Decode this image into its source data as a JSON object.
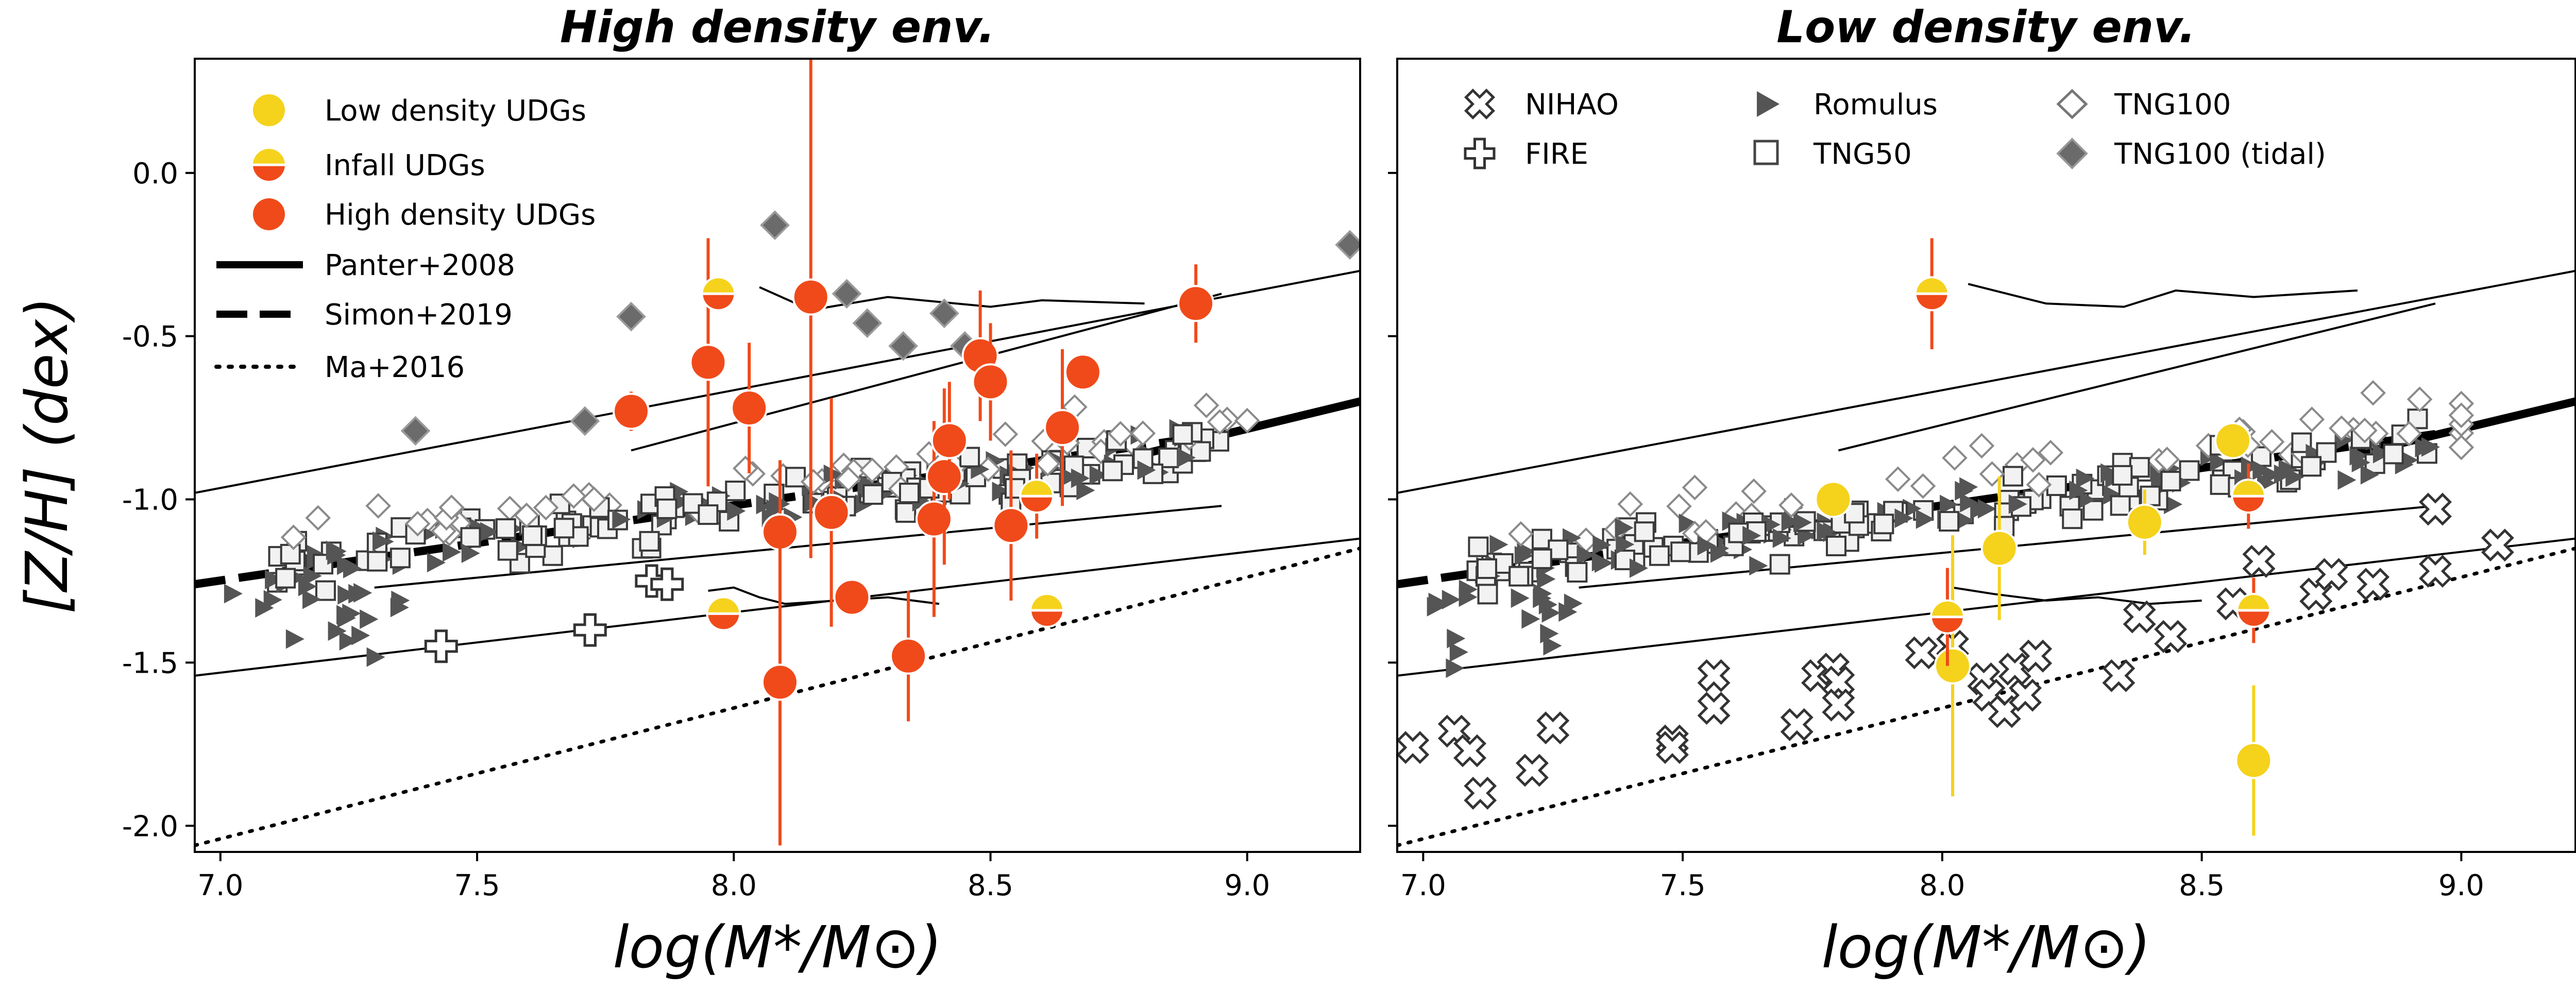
{
  "chart_data": [
    {
      "panel": "left",
      "type": "scatter",
      "title": "High density env.",
      "xlabel": "log(M*/M⊙)",
      "ylabel": "[Z/H] (dex)",
      "xlim": [
        6.95,
        9.22
      ],
      "ylim": [
        -2.08,
        0.35
      ],
      "xticks": [
        "7.0",
        "7.5",
        "8.0",
        "8.5",
        "9.0"
      ],
      "yticks": [
        "0.0",
        "-0.5",
        "-1.0",
        "-1.5",
        "-2.0"
      ],
      "legend_position": "upper-left",
      "legend": [
        {
          "label": "Low density UDGs",
          "marker": "circle",
          "color": "#f5d21c"
        },
        {
          "label": "Infall UDGs",
          "marker": "half-circle",
          "color": "#f5d21c",
          "color2": "#f04a1a"
        },
        {
          "label": "High density UDGs",
          "marker": "circle",
          "color": "#f04a1a"
        },
        {
          "label": "Panter+2008",
          "marker": "line-solid"
        },
        {
          "label": "Simon+2019",
          "marker": "line-dashed"
        },
        {
          "label": "Ma+2016",
          "marker": "line-dotted"
        }
      ],
      "relations": {
        "panter_band": [
          [
            6.95,
            -0.98
          ],
          [
            9.22,
            -0.3
          ]
        ],
        "panter_lower": [
          [
            6.95,
            -1.54
          ],
          [
            9.22,
            -1.12
          ]
        ],
        "simon_dashed": [
          [
            6.95,
            -1.26
          ],
          [
            8.95,
            -0.8
          ]
        ],
        "simon_thick": [
          [
            8.8,
            -0.86
          ],
          [
            9.22,
            -0.7
          ]
        ],
        "ma_dotted": [
          [
            6.95,
            -2.06
          ],
          [
            9.22,
            -1.15
          ]
        ],
        "thin_upper": [
          [
            7.8,
            -0.85
          ],
          [
            8.95,
            -0.37
          ]
        ],
        "thin_lower": [
          [
            7.3,
            -1.27
          ],
          [
            8.95,
            -1.02
          ]
        ],
        "thin_wiggle": [
          [
            7.95,
            -1.28
          ],
          [
            8.0,
            -1.27
          ],
          [
            8.05,
            -1.3
          ],
          [
            8.1,
            -1.32
          ],
          [
            8.2,
            -1.31
          ],
          [
            8.3,
            -1.3
          ],
          [
            8.4,
            -1.32
          ]
        ],
        "thin_top": [
          [
            8.05,
            -0.35
          ],
          [
            8.15,
            -0.42
          ],
          [
            8.3,
            -0.38
          ],
          [
            8.5,
            -0.41
          ],
          [
            8.6,
            -0.39
          ],
          [
            8.8,
            -0.4
          ]
        ]
      },
      "series": [
        {
          "name": "High density UDGs",
          "marker": "circle",
          "color": "#f04a1a",
          "points": [
            {
              "x": 7.8,
              "y": -0.73,
              "err": 0.06
            },
            {
              "x": 7.95,
              "y": -0.58,
              "err": 0.38
            },
            {
              "x": 8.03,
              "y": -0.72,
              "err": 0.2
            },
            {
              "x": 8.09,
              "y": -1.1,
              "err": 0.22
            },
            {
              "x": 8.15,
              "y": -0.38,
              "err": 0.8
            },
            {
              "x": 8.19,
              "y": -1.04,
              "err": 0.35
            },
            {
              "x": 8.23,
              "y": -1.3,
              "err": 0.0
            },
            {
              "x": 8.09,
              "y": -1.56,
              "err": 0.5
            },
            {
              "x": 8.34,
              "y": -1.48,
              "err": 0.2
            },
            {
              "x": 8.39,
              "y": -1.06,
              "err": 0.3
            },
            {
              "x": 8.41,
              "y": -0.93,
              "err": 0.27
            },
            {
              "x": 8.42,
              "y": -0.82,
              "err": 0.18
            },
            {
              "x": 8.48,
              "y": -0.56,
              "err": 0.2
            },
            {
              "x": 8.5,
              "y": -0.64,
              "err": 0.18
            },
            {
              "x": 8.54,
              "y": -1.08,
              "err": 0.23
            },
            {
              "x": 8.64,
              "y": -0.78,
              "err": 0.24
            },
            {
              "x": 8.68,
              "y": -0.61,
              "err": 0.0
            },
            {
              "x": 8.9,
              "y": -0.4,
              "err": 0.12
            }
          ]
        },
        {
          "name": "Infall UDGs",
          "marker": "half-circle",
          "color": "#f5d21c",
          "color2": "#f04a1a",
          "points": [
            {
              "x": 7.97,
              "y": -0.37,
              "err": 0.0
            },
            {
              "x": 7.98,
              "y": -1.35,
              "err": 0.0
            },
            {
              "x": 8.59,
              "y": -0.99,
              "err": 0.13
            },
            {
              "x": 8.61,
              "y": -1.34,
              "err": 0.0
            }
          ]
        },
        {
          "name": "TNG100 (tidal)",
          "marker": "diamond-filled",
          "color": "#6b6b6b",
          "points": [
            {
              "x": 7.38,
              "y": -0.79
            },
            {
              "x": 7.8,
              "y": -0.44
            },
            {
              "x": 8.08,
              "y": -0.16
            },
            {
              "x": 8.22,
              "y": -0.37
            },
            {
              "x": 8.26,
              "y": -0.46
            },
            {
              "x": 8.33,
              "y": -0.53
            },
            {
              "x": 8.41,
              "y": -0.43
            },
            {
              "x": 8.45,
              "y": -0.53
            },
            {
              "x": 9.2,
              "y": -0.22
            },
            {
              "x": 7.71,
              "y": -0.76
            }
          ]
        }
      ]
    },
    {
      "panel": "right",
      "type": "scatter",
      "title": "Low density env.",
      "xlabel": "log(M*/M⊙)",
      "ylabel": "",
      "xlim": [
        6.95,
        9.22
      ],
      "ylim": [
        -2.08,
        0.35
      ],
      "xticks": [
        "7.0",
        "7.5",
        "8.0",
        "8.5",
        "9.0"
      ],
      "legend_position": "upper-left",
      "legend": [
        {
          "label": "NIHAO",
          "marker": "x-cross"
        },
        {
          "label": "FIRE",
          "marker": "plus-cross"
        },
        {
          "label": "Romulus",
          "marker": "triangle-right"
        },
        {
          "label": "TNG50",
          "marker": "square"
        },
        {
          "label": "TNG100",
          "marker": "diamond-open"
        },
        {
          "label": "TNG100 (tidal)",
          "marker": "diamond-filled"
        }
      ],
      "relations": {
        "panter_band": [
          [
            6.95,
            -0.98
          ],
          [
            9.22,
            -0.3
          ]
        ],
        "panter_lower": [
          [
            6.95,
            -1.54
          ],
          [
            9.22,
            -1.12
          ]
        ],
        "simon_dashed": [
          [
            6.95,
            -1.26
          ],
          [
            8.95,
            -0.8
          ]
        ],
        "simon_thick": [
          [
            8.8,
            -0.86
          ],
          [
            9.22,
            -0.7
          ]
        ],
        "ma_dotted": [
          [
            6.95,
            -2.06
          ],
          [
            9.22,
            -1.15
          ]
        ],
        "thin_upper": [
          [
            7.8,
            -0.85
          ],
          [
            8.95,
            -0.4
          ]
        ],
        "thin_lower": [
          [
            7.3,
            -1.27
          ],
          [
            8.95,
            -1.02
          ]
        ],
        "thin_wiggle": [
          [
            8.02,
            -1.27
          ],
          [
            8.1,
            -1.29
          ],
          [
            8.2,
            -1.31
          ],
          [
            8.3,
            -1.3
          ],
          [
            8.4,
            -1.32
          ],
          [
            8.5,
            -1.31
          ]
        ],
        "thin_top": [
          [
            8.05,
            -0.34
          ],
          [
            8.2,
            -0.4
          ],
          [
            8.35,
            -0.41
          ],
          [
            8.45,
            -0.36
          ],
          [
            8.6,
            -0.38
          ],
          [
            8.8,
            -0.36
          ]
        ]
      },
      "series": [
        {
          "name": "Low density UDGs",
          "marker": "circle",
          "color": "#f5d21c",
          "points": [
            {
              "x": 7.79,
              "y": -1.0,
              "err": 0.0
            },
            {
              "x": 8.02,
              "y": -1.51,
              "err": 0.4
            },
            {
              "x": 8.11,
              "y": -1.15,
              "err": 0.22
            },
            {
              "x": 8.39,
              "y": -1.07,
              "err": 0.1
            },
            {
              "x": 8.56,
              "y": -0.82,
              "err": 0.0
            },
            {
              "x": 8.6,
              "y": -1.8,
              "err": 0.23
            }
          ]
        },
        {
          "name": "Infall UDGs",
          "marker": "half-circle",
          "color": "#f5d21c",
          "color2": "#f04a1a",
          "points": [
            {
              "x": 7.98,
              "y": -0.37,
              "err": 0.17
            },
            {
              "x": 8.01,
              "y": -1.36,
              "err": 0.15
            },
            {
              "x": 8.59,
              "y": -0.99,
              "err": 0.1
            },
            {
              "x": 8.6,
              "y": -1.34,
              "err": 0.1
            }
          ]
        },
        {
          "name": "NIHAO",
          "marker": "x-cross",
          "color": "#ffffff",
          "points": [
            {
              "x": 6.98,
              "y": -1.76
            },
            {
              "x": 7.06,
              "y": -1.71
            },
            {
              "x": 7.09,
              "y": -1.77
            },
            {
              "x": 7.11,
              "y": -1.9
            },
            {
              "x": 7.21,
              "y": -1.83
            },
            {
              "x": 7.25,
              "y": -1.7
            },
            {
              "x": 7.48,
              "y": -1.74
            },
            {
              "x": 7.48,
              "y": -1.76
            },
            {
              "x": 7.56,
              "y": -1.54
            },
            {
              "x": 7.56,
              "y": -1.64
            },
            {
              "x": 7.72,
              "y": -1.69
            },
            {
              "x": 7.76,
              "y": -1.54
            },
            {
              "x": 7.79,
              "y": -1.52
            },
            {
              "x": 7.8,
              "y": -1.56
            },
            {
              "x": 7.8,
              "y": -1.63
            },
            {
              "x": 7.96,
              "y": -1.47
            },
            {
              "x": 8.02,
              "y": -1.45
            },
            {
              "x": 8.08,
              "y": -1.55
            },
            {
              "x": 8.09,
              "y": -1.6
            },
            {
              "x": 8.12,
              "y": -1.65
            },
            {
              "x": 8.14,
              "y": -1.52
            },
            {
              "x": 8.16,
              "y": -1.6
            },
            {
              "x": 8.18,
              "y": -1.48
            },
            {
              "x": 8.34,
              "y": -1.54
            },
            {
              "x": 8.38,
              "y": -1.36
            },
            {
              "x": 8.44,
              "y": -1.42
            },
            {
              "x": 8.56,
              "y": -1.32
            },
            {
              "x": 8.61,
              "y": -1.19
            },
            {
              "x": 8.72,
              "y": -1.29
            },
            {
              "x": 8.75,
              "y": -1.23
            },
            {
              "x": 8.83,
              "y": -1.26
            },
            {
              "x": 8.95,
              "y": -1.03
            },
            {
              "x": 8.95,
              "y": -1.22
            },
            {
              "x": 9.07,
              "y": -1.14
            }
          ]
        }
      ]
    }
  ]
}
